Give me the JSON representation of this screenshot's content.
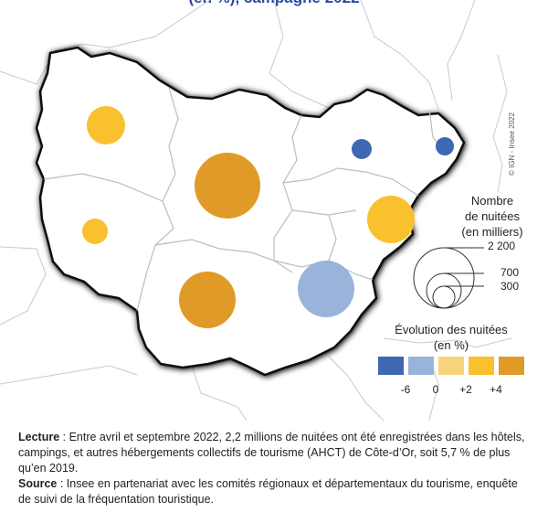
{
  "title_fragment": "(en %), campagne 2022",
  "credit": "© IGN - Insee 2022",
  "legend_size": {
    "title_line1": "Nombre",
    "title_line2": "de nuitées",
    "title_line3": "(en milliers)",
    "values": [
      "2 200",
      "700",
      "300"
    ]
  },
  "legend_color": {
    "title_line1": "Évolution des nuitées",
    "title_line2": "(en %)",
    "tick_labels": [
      "-6",
      "0",
      "+2",
      "+4"
    ],
    "classes": [
      {
        "color": "#3f68b3"
      },
      {
        "color": "#9ab3da"
      },
      {
        "color": "#f6d57a"
      },
      {
        "color": "#f8c12d"
      },
      {
        "color": "#e09a28"
      }
    ]
  },
  "departments": [
    {
      "color": "#f8c12d",
      "size": "medium"
    },
    {
      "color": "#f8c12d",
      "size": "small"
    },
    {
      "color": "#e09a28",
      "size": "large"
    },
    {
      "color": "#e09a28",
      "size": "medium"
    },
    {
      "color": "#9ab3da",
      "size": "medium"
    },
    {
      "color": "#f8c12d",
      "size": "medium"
    },
    {
      "color": "#3f68b3",
      "size": "tiny"
    },
    {
      "color": "#3f68b3",
      "size": "tiny"
    }
  ],
  "notes": {
    "lecture_label": "Lecture",
    "lecture_text": " : Entre avril et septembre 2022, 2,2 millions de nuitées ont été enregistrées dans les hôtels, campings, et autres hébergements collectifs de tourisme (AHCT) de Côte-d’Or, soit 5,7 % de plus qu’en 2019.",
    "source_label": "Source",
    "source_text": " : Insee en partenariat avec les comités régionaux et départementaux du tourisme, enquête de suivi de la fréquentation touristique."
  }
}
